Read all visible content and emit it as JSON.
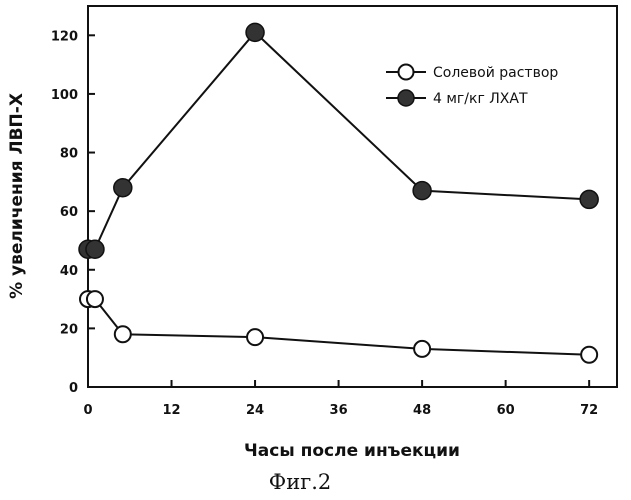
{
  "chart_data": {
    "type": "line",
    "title": "",
    "xlabel": "Часы после инъекции",
    "ylabel": "% увеличения ЛВП-Х",
    "caption": "Фиг.2",
    "xlim": [
      0,
      76
    ],
    "ylim": [
      0,
      130
    ],
    "x_ticks": [
      "0",
      "12",
      "24",
      "36",
      "48",
      "60",
      "72"
    ],
    "y_ticks": [
      "0",
      "20",
      "40",
      "60",
      "80",
      "100",
      "120"
    ],
    "legend_position": "top-right",
    "series": [
      {
        "name": "Солевой раствор",
        "marker": "open-circle",
        "color": "#111111",
        "x": [
          0,
          1,
          5,
          24,
          48,
          72
        ],
        "y": [
          30,
          30,
          18,
          17,
          13,
          11
        ]
      },
      {
        "name": "4 мг/кг ЛХАТ",
        "marker": "filled-circle",
        "color": "#333333",
        "x": [
          0,
          1,
          5,
          24,
          48,
          72
        ],
        "y": [
          47,
          47,
          68,
          121,
          67,
          64
        ]
      }
    ]
  }
}
